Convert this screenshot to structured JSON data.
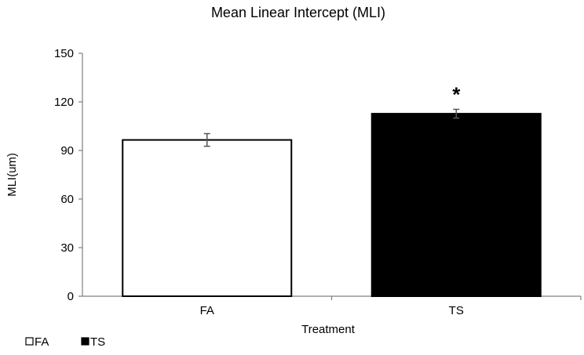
{
  "chart_data": {
    "type": "bar",
    "title": "Mean Linear Intercept (MLI)",
    "xlabel": "Treatment",
    "ylabel": "MLI(um)",
    "ylim": [
      0,
      150
    ],
    "yticks": [
      0,
      30,
      60,
      90,
      120,
      150
    ],
    "yticklabels": [
      "0",
      "30",
      "60",
      "90",
      "120",
      "150"
    ],
    "categories": [
      "FA",
      "TS"
    ],
    "values": [
      96.5,
      112.7
    ],
    "errors": [
      3.9,
      2.7
    ],
    "fills": [
      "#ffffff",
      "#000000"
    ],
    "annotations": [
      {
        "category": "TS",
        "text": "*"
      }
    ],
    "legend": {
      "placement": "bottom-left",
      "entries": [
        {
          "label": "FA",
          "color": "#ffffff"
        },
        {
          "label": "TS",
          "color": "#000000"
        }
      ]
    },
    "grid": false
  }
}
